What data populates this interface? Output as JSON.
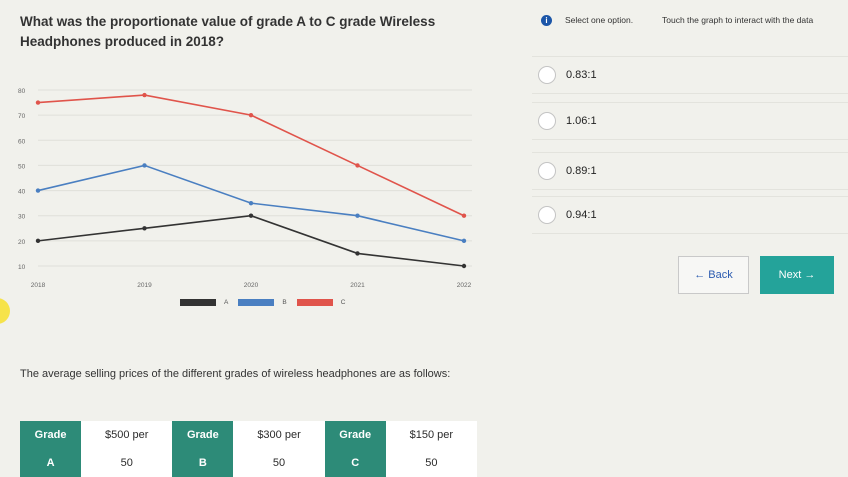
{
  "question": "What was the proportionate value of grade A to C grade Wireless Headphones produced in 2018?",
  "header": {
    "info_icon": "i",
    "instruction": "Select one option.",
    "graph_hint": "Touch the graph to interact with the data"
  },
  "options": [
    {
      "label": "0.83:1"
    },
    {
      "label": "1.06:1"
    },
    {
      "label": "0.89:1"
    },
    {
      "label": "0.94:1"
    }
  ],
  "nav": {
    "back": "← Back",
    "next": "Next →"
  },
  "paragraph": "The average selling prices of the different grades of wireless headphones are as follows:",
  "table": {
    "rows": [
      [
        "Grade",
        "$500 per",
        "Grade",
        "$300 per",
        "Grade",
        "$150 per"
      ],
      [
        "A",
        "50",
        "B",
        "50",
        "C",
        "50"
      ]
    ]
  },
  "colors": {
    "A": "#333333",
    "B": "#4a7fc1",
    "C": "#e0544b",
    "accent": "#24a39a",
    "table_header": "#2d8b78"
  },
  "chart_data": {
    "type": "line",
    "x": [
      "2018",
      "2019",
      "2020",
      "2021",
      "2022"
    ],
    "ylim": [
      10,
      80
    ],
    "yticks": [
      "10",
      "20",
      "30",
      "40",
      "50",
      "60",
      "70",
      "80"
    ],
    "grid": true,
    "legend": "bottom",
    "series": [
      {
        "name": "A",
        "color": "#333333",
        "values": [
          20,
          25,
          30,
          15,
          10
        ]
      },
      {
        "name": "B",
        "color": "#4a7fc1",
        "values": [
          40,
          50,
          35,
          30,
          20
        ]
      },
      {
        "name": "C",
        "color": "#e0544b",
        "values": [
          75,
          78,
          70,
          50,
          30
        ]
      }
    ]
  }
}
